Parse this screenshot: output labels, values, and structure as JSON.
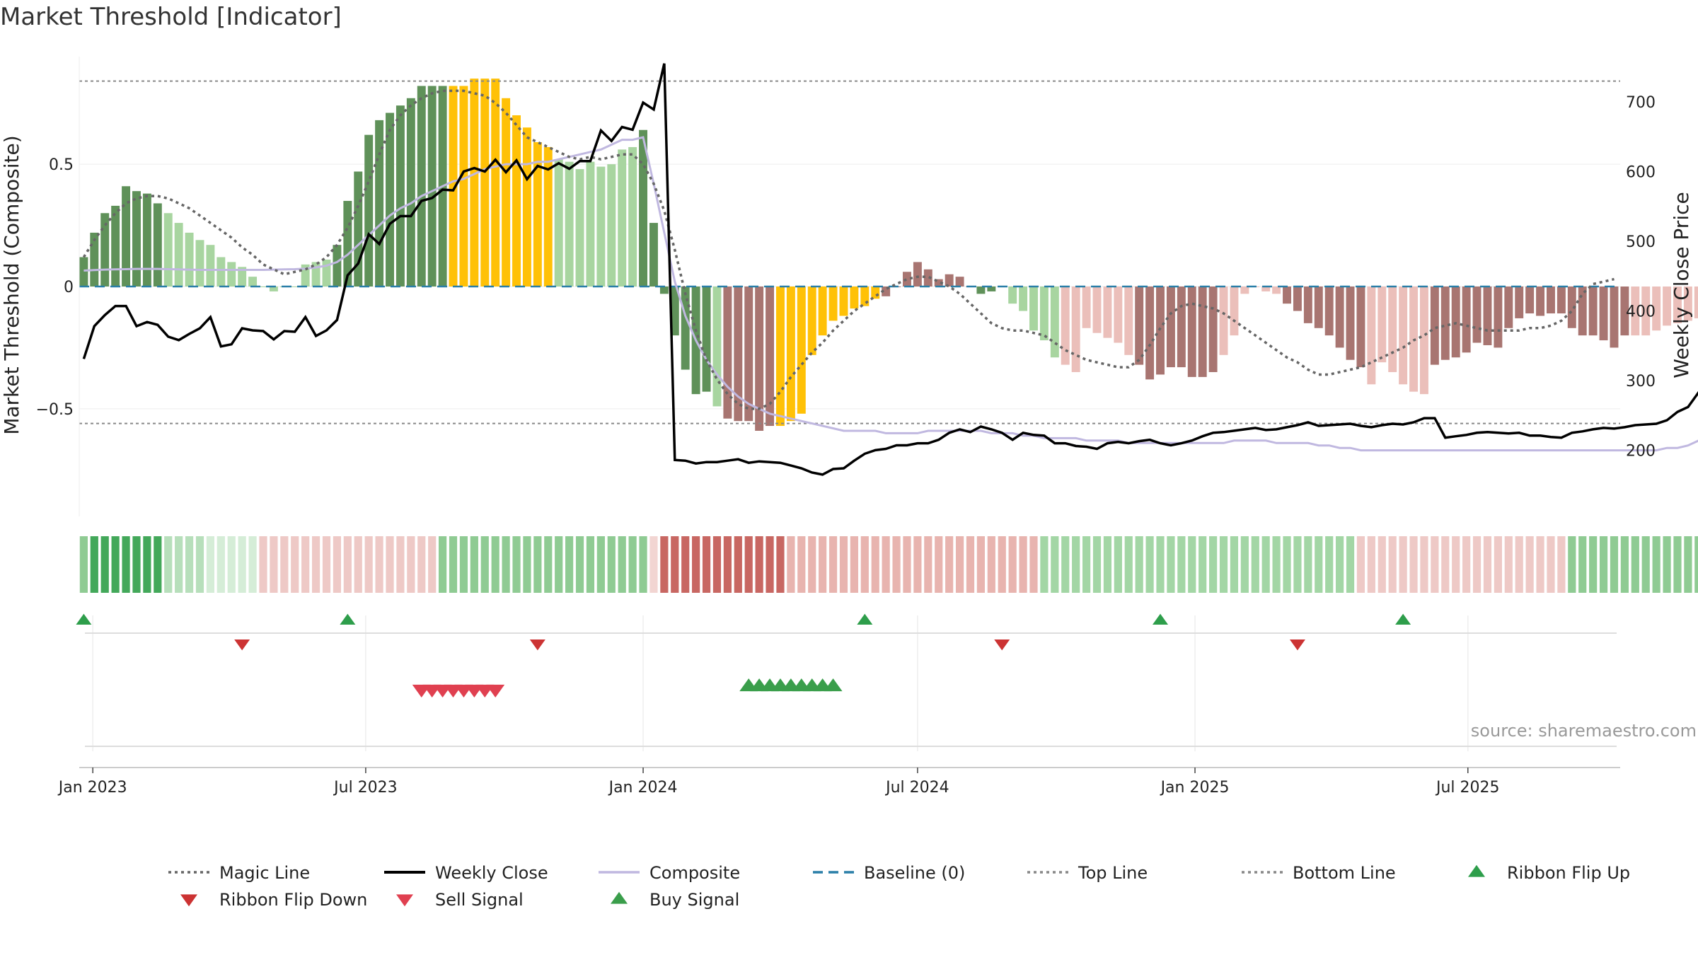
{
  "chart_data": {
    "type": "bar",
    "title": "Market Threshold [Indicator]",
    "ylabel_left": "Market Threshold (Composite)",
    "ylabel_right": "Weekly Close Price",
    "source": "source: sharemaestro.com",
    "y_left_ticks": [
      {
        "v": 0.5,
        "label": "0.5"
      },
      {
        "v": 0,
        "label": "0"
      },
      {
        "v": -0.5,
        "label": "−0.5"
      }
    ],
    "y_right_ticks": [
      200,
      300,
      400,
      500,
      600,
      700
    ],
    "y_left_range": [
      -0.94,
      0.94
    ],
    "y_right_range": [
      105,
      765
    ],
    "x_range": [
      "2022-12-23",
      "2025-10-10"
    ],
    "x_ticks": [
      {
        "date": "2023-01-01",
        "label": "Jan 2023"
      },
      {
        "date": "2023-07-01",
        "label": "Jul 2023"
      },
      {
        "date": "2024-01-01",
        "label": "Jan 2024"
      },
      {
        "date": "2024-07-01",
        "label": "Jul 2024"
      },
      {
        "date": "2025-01-01",
        "label": "Jan 2025"
      },
      {
        "date": "2025-07-01",
        "label": "Jul 2025"
      }
    ],
    "top_line": 0.84,
    "bottom_line": -0.56,
    "baseline": 0,
    "colors": {
      "bull_strong": "#5f9159",
      "bull_weak": "#a8d5a0",
      "bear_strong": "#a87571",
      "bear_weak": "#ebbfba",
      "extreme": "#ffc107",
      "close": "#000000",
      "composite": "#c0b8e0",
      "magic": "#666666",
      "baseline": "#2a7fa8",
      "thresholds": "#888888",
      "flip_up": "#2e9e4b",
      "flip_down": "#cc3333",
      "sell": "#e04050",
      "buy": "#3a9e4b"
    },
    "composite_bars": [
      0.12,
      0.22,
      0.3,
      0.33,
      0.41,
      0.39,
      0.38,
      0.34,
      0.3,
      0.26,
      0.22,
      0.19,
      0.17,
      0.12,
      0.1,
      0.08,
      0.04,
      0,
      -0.02,
      0,
      0,
      0.09,
      0.1,
      0.11,
      0.17,
      0.35,
      0.47,
      0.62,
      0.68,
      0.71,
      0.74,
      0.77,
      0.82,
      0.82,
      0.82,
      0.82,
      0.82,
      0.85,
      0.85,
      0.85,
      0.77,
      0.7,
      0.65,
      0.59,
      0.57,
      0.52,
      0.51,
      0.48,
      0.51,
      0.49,
      0.5,
      0.56,
      0.57,
      0.64,
      0.26,
      -0.03,
      -0.2,
      -0.34,
      -0.44,
      -0.43,
      -0.49,
      -0.54,
      -0.55,
      -0.55,
      -0.59,
      -0.57,
      -0.57,
      -0.55,
      -0.52,
      -0.28,
      -0.2,
      -0.14,
      -0.12,
      -0.09,
      -0.08,
      -0.05,
      -0.04,
      0,
      0.06,
      0.1,
      0.07,
      0.03,
      0.05,
      0.04,
      0,
      -0.03,
      -0.02,
      0,
      -0.07,
      -0.1,
      -0.18,
      -0.22,
      -0.29,
      -0.32,
      -0.35,
      -0.17,
      -0.19,
      -0.21,
      -0.23,
      -0.28,
      -0.32,
      -0.38,
      -0.36,
      -0.33,
      -0.33,
      -0.37,
      -0.37,
      -0.35,
      -0.28,
      -0.2,
      -0.03,
      0,
      -0.02,
      -0.03,
      -0.07,
      -0.1,
      -0.15,
      -0.17,
      -0.2,
      -0.25,
      -0.3,
      -0.33,
      -0.4,
      -0.31,
      -0.35,
      -0.4,
      -0.43,
      -0.44,
      -0.32,
      -0.3,
      -0.29,
      -0.27,
      -0.23,
      -0.24,
      -0.25,
      -0.17,
      -0.13,
      -0.11,
      -0.12,
      -0.11,
      -0.11,
      -0.17,
      -0.2,
      -0.2,
      -0.22,
      -0.25,
      -0.2,
      -0.2,
      -0.2,
      -0.18,
      -0.16,
      -0.15,
      -0.14,
      -0.13,
      0.13,
      0.18,
      0.34
    ],
    "bar_palette": "CCCCCCCCAAAAAAAAAAAAAAAABBCCCCCCCCCEEEEEEEEEEAAAAAAAACCCCCCCAFFFFFEEEEEEEEEEFFFFFFFFFCCDAAAAADDDDDDDFFFFFFFFDDDDDDFFFFFFFFDDDDDDFFFFFFFFFFFFFFFFFFFDDDDDDDFFFFFFFFFFFFDDDDDDDDCCC",
    "magic_line": [
      0.12,
      0.19,
      0.25,
      0.3,
      0.34,
      0.36,
      0.37,
      0.37,
      0.36,
      0.34,
      0.32,
      0.29,
      0.26,
      0.23,
      0.2,
      0.16,
      0.13,
      0.09,
      0.07,
      0.05,
      0.06,
      0.07,
      0.09,
      0.12,
      0.17,
      0.24,
      0.33,
      0.43,
      0.54,
      0.64,
      0.7,
      0.74,
      0.77,
      0.79,
      0.8,
      0.8,
      0.8,
      0.79,
      0.78,
      0.75,
      0.71,
      0.66,
      0.61,
      0.59,
      0.57,
      0.55,
      0.53,
      0.52,
      0.53,
      0.52,
      0.53,
      0.54,
      0.54,
      0.5,
      0.42,
      0.31,
      0.15,
      -0.03,
      -0.18,
      -0.3,
      -0.38,
      -0.44,
      -0.48,
      -0.5,
      -0.5,
      -0.48,
      -0.43,
      -0.37,
      -0.32,
      -0.27,
      -0.23,
      -0.18,
      -0.14,
      -0.1,
      -0.07,
      -0.04,
      -0.01,
      0.01,
      0.03,
      0.04,
      0.04,
      0.02,
      0,
      -0.03,
      -0.07,
      -0.11,
      -0.15,
      -0.17,
      -0.18,
      -0.18,
      -0.19,
      -0.2,
      -0.23,
      -0.26,
      -0.28,
      -0.3,
      -0.31,
      -0.32,
      -0.33,
      -0.33,
      -0.3,
      -0.24,
      -0.17,
      -0.11,
      -0.08,
      -0.07,
      -0.08,
      -0.09,
      -0.11,
      -0.14,
      -0.17,
      -0.2,
      -0.23,
      -0.26,
      -0.29,
      -0.31,
      -0.34,
      -0.36,
      -0.36,
      -0.35,
      -0.34,
      -0.33,
      -0.31,
      -0.29,
      -0.27,
      -0.25,
      -0.22,
      -0.2,
      -0.17,
      -0.16,
      -0.15,
      -0.16,
      -0.17,
      -0.18,
      -0.18,
      -0.18,
      -0.18,
      -0.17,
      -0.17,
      -0.16,
      -0.14,
      -0.1,
      -0.03,
      0.01,
      0.02,
      0.03
    ],
    "weekly_close": [
      331,
      378,
      394,
      407,
      407,
      378,
      384,
      380,
      363,
      358,
      367,
      375,
      391,
      349,
      352,
      375,
      372,
      371,
      359,
      371,
      370,
      391,
      364,
      372,
      387,
      451,
      468,
      510,
      496,
      525,
      536,
      536,
      558,
      562,
      574,
      573,
      600,
      605,
      600,
      617,
      599,
      616,
      589,
      608,
      603,
      612,
      604,
      615,
      615,
      659,
      644,
      664,
      660,
      699,
      689,
      755,
      186,
      185,
      181,
      183,
      183,
      185,
      187,
      182,
      184,
      183,
      182,
      178,
      174,
      168,
      165,
      173,
      174,
      185,
      195,
      200,
      202,
      207,
      207,
      210,
      210,
      215,
      225,
      230,
      226,
      234,
      230,
      225,
      215,
      225,
      222,
      221,
      210,
      210,
      206,
      205,
      202,
      210,
      212,
      210,
      213,
      215,
      210,
      207,
      210,
      214,
      220,
      225,
      226,
      228,
      230,
      232,
      229,
      230,
      233,
      236,
      240,
      235,
      236,
      237,
      238,
      235,
      233,
      236,
      238,
      237,
      240,
      246,
      246,
      218,
      220,
      222,
      225,
      226,
      225,
      224,
      225,
      221,
      221,
      219,
      218,
      225,
      227,
      230,
      232,
      231,
      233,
      236,
      237,
      238,
      243,
      255,
      262,
      283,
      283,
      291,
      297
    ],
    "composite_line": [
      0.065,
      0.067,
      0.069,
      0.07,
      0.071,
      0.072,
      0.072,
      0.072,
      0.071,
      0.07,
      0.069,
      0.068,
      0.068,
      0.068,
      0.068,
      0.068,
      0.068,
      0.068,
      0.069,
      0.07,
      0.071,
      0.073,
      0.078,
      0.085,
      0.1,
      0.13,
      0.17,
      0.21,
      0.25,
      0.29,
      0.32,
      0.34,
      0.37,
      0.39,
      0.41,
      0.43,
      0.44,
      0.46,
      0.48,
      0.49,
      0.5,
      0.5,
      0.5,
      0.51,
      0.51,
      0.52,
      0.53,
      0.54,
      0.55,
      0.56,
      0.58,
      0.6,
      0.6,
      0.61,
      0.42,
      0.22,
      0.02,
      -0.12,
      -0.22,
      -0.3,
      -0.36,
      -0.41,
      -0.45,
      -0.48,
      -0.5,
      -0.52,
      -0.53,
      -0.54,
      -0.55,
      -0.56,
      -0.57,
      -0.58,
      -0.59,
      -0.59,
      -0.59,
      -0.59,
      -0.6,
      -0.6,
      -0.6,
      -0.6,
      -0.59,
      -0.59,
      -0.59,
      -0.59,
      -0.59,
      -0.59,
      -0.6,
      -0.6,
      -0.6,
      -0.61,
      -0.61,
      -0.62,
      -0.62,
      -0.62,
      -0.62,
      -0.63,
      -0.63,
      -0.63,
      -0.63,
      -0.64,
      -0.64,
      -0.64,
      -0.64,
      -0.64,
      -0.64,
      -0.64,
      -0.64,
      -0.64,
      -0.64,
      -0.63,
      -0.63,
      -0.63,
      -0.63,
      -0.64,
      -0.64,
      -0.64,
      -0.64,
      -0.65,
      -0.65,
      -0.66,
      -0.66,
      -0.67,
      -0.67,
      -0.67,
      -0.67,
      -0.67,
      -0.67,
      -0.67,
      -0.67,
      -0.67,
      -0.67,
      -0.67,
      -0.67,
      -0.67,
      -0.67,
      -0.67,
      -0.67,
      -0.67,
      -0.67,
      -0.67,
      -0.67,
      -0.67,
      -0.67,
      -0.67,
      -0.67,
      -0.67,
      -0.67,
      -0.67,
      -0.67,
      -0.67,
      -0.66,
      -0.66,
      -0.65,
      -0.63,
      -0.61
    ],
    "ribbon_palette": "LMMMMMMMNNNNOOOOOPPPPPPPPPPPPPPPPPLLLLLLLLLLLLLLLLLLLLQRRRRRRRRRRRRSSSSSSSSSSSSSSSSSSSSSSSSTTTTTTTTTTTTTTTTTTTTTTTTTTTTTTPPPPPPPPPPPPPPPPPPPPLLLLLLLLLLLLLLNNNNNNNNNNNNNNNNNNNNNN",
    "ribbon_flip_up": [
      "2022-12-26",
      "2023-06-19",
      "2024-05-27",
      "2024-12-09",
      "2025-05-19"
    ],
    "ribbon_flip_down": [
      "2023-04-10",
      "2023-10-23",
      "2024-08-26",
      "2025-03-10"
    ],
    "sell_signals": [
      "2023-08-07",
      "2023-08-14",
      "2023-08-21",
      "2023-08-28",
      "2023-09-04",
      "2023-09-11",
      "2023-09-18",
      "2023-09-25"
    ],
    "buy_signals": [
      "2024-03-11",
      "2024-03-18",
      "2024-03-25",
      "2024-04-01",
      "2024-04-08",
      "2024-04-15",
      "2024-04-22",
      "2024-04-29",
      "2024-05-06"
    ],
    "legend": [
      {
        "key": "magic",
        "label": "Magic Line",
        "style": "dotted-line"
      },
      {
        "key": "close",
        "label": "Weekly Close",
        "style": "solid-line"
      },
      {
        "key": "composite",
        "label": "Composite",
        "style": "solid-line"
      },
      {
        "key": "baseline",
        "label": "Baseline (0)",
        "style": "dashed-line"
      },
      {
        "key": "thresholds",
        "label": "Top Line",
        "style": "dotted-line"
      },
      {
        "key": "thresholds",
        "label": "Bottom Line",
        "style": "dotted-line"
      },
      {
        "key": "flip_up",
        "label": "Ribbon Flip Up",
        "style": "triangle-up"
      },
      {
        "key": "flip_down",
        "label": "Ribbon Flip Down",
        "style": "triangle-down"
      },
      {
        "key": "sell",
        "label": "Sell Signal",
        "style": "triangle-down"
      },
      {
        "key": "buy",
        "label": "Buy Signal",
        "style": "triangle-up"
      }
    ]
  }
}
